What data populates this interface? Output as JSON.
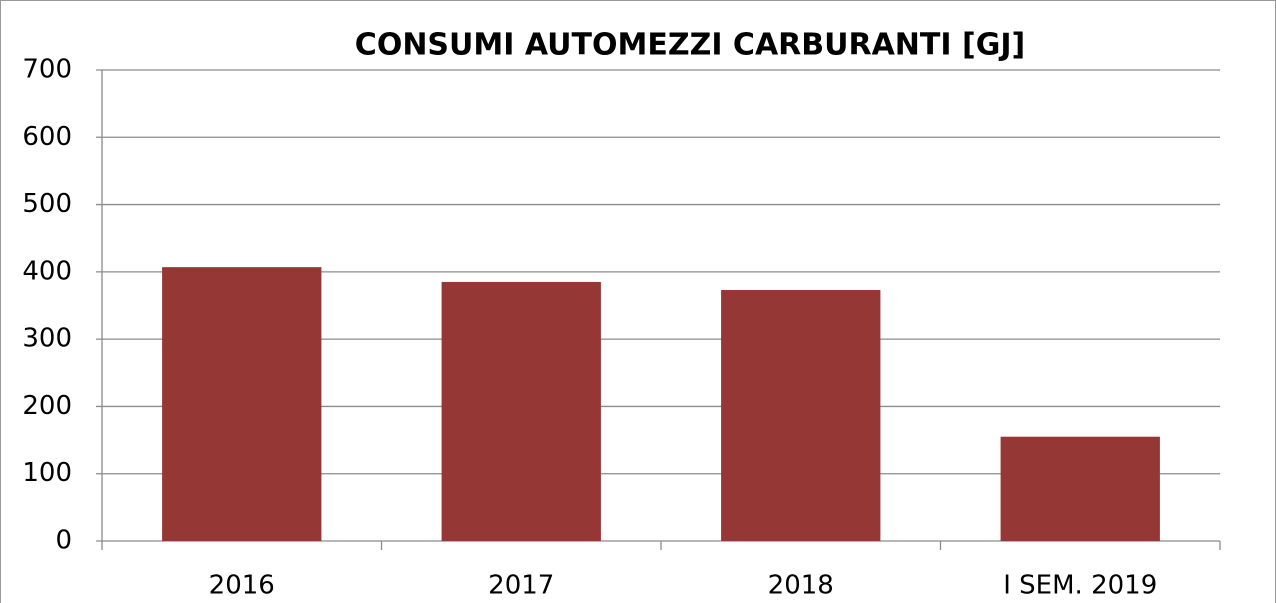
{
  "chart_data": {
    "type": "bar",
    "title": "CONSUMI AUTOMEZZI CARBURANTI [GJ]",
    "categories": [
      "2016",
      "2017",
      "2018",
      "I SEM. 2019"
    ],
    "values": [
      407,
      385,
      373,
      155
    ],
    "color": "#953735",
    "ylim": [
      0,
      700
    ],
    "yticks": [
      0,
      100,
      200,
      300,
      400,
      500,
      600,
      700
    ],
    "grid": true
  }
}
